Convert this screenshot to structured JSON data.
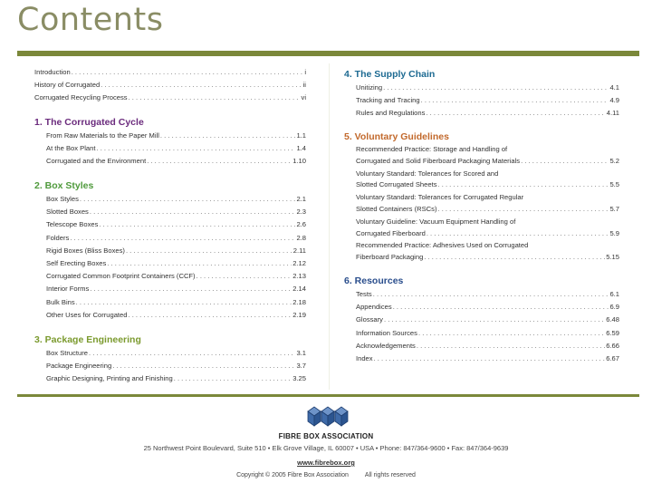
{
  "title": "Contents",
  "colors": {
    "bar": "#7b883a",
    "title": "#8a8d65"
  },
  "left_intro": [
    {
      "label": "Introduction",
      "page": "i"
    },
    {
      "label": "History of Corrugated",
      "page": "ii"
    },
    {
      "label": "Corrugated Recycling Process",
      "page": "vi"
    }
  ],
  "sections": [
    {
      "heading": "1. The Corrugated Cycle",
      "color": "#6b2b7d",
      "entries": [
        {
          "label": "From Raw Materials to the Paper Mill",
          "page": "1.1"
        },
        {
          "label": "At the Box Plant",
          "page": "1.4"
        },
        {
          "label": "Corrugated and the Environment",
          "page": "1.10"
        }
      ]
    },
    {
      "heading": "2. Box Styles",
      "color": "#4f9a3c",
      "entries": [
        {
          "label": "Box Styles",
          "page": "2.1"
        },
        {
          "label": "Slotted Boxes",
          "page": "2.3"
        },
        {
          "label": "Telescope Boxes",
          "page": "2.6"
        },
        {
          "label": "Folders",
          "page": "2.8"
        },
        {
          "label": "Rigid Boxes (Bliss Boxes)",
          "page": "2.11"
        },
        {
          "label": "Self Erecting Boxes",
          "page": "2.12"
        },
        {
          "label": "Corrugated Common Footprint Containers (CCF)",
          "page": "2.13"
        },
        {
          "label": "Interior Forms",
          "page": "2.14"
        },
        {
          "label": "Bulk Bins",
          "page": "2.18"
        },
        {
          "label": "Other Uses for Corrugated",
          "page": "2.19"
        }
      ]
    },
    {
      "heading": "3. Package Engineering",
      "color": "#7b9a2e",
      "entries": [
        {
          "label": "Box Structure",
          "page": "3.1"
        },
        {
          "label": "Package Engineering",
          "page": "3.7"
        },
        {
          "label": "Graphic Designing, Printing and Finishing",
          "page": "3.25"
        }
      ]
    },
    {
      "heading": "4. The Supply Chain",
      "color": "#1d6a92",
      "entries": [
        {
          "label": "Unitizing",
          "page": "4.1"
        },
        {
          "label": "Tracking and Tracing",
          "page": "4.9"
        },
        {
          "label": "Rules and Regulations",
          "page": "4.11"
        }
      ]
    },
    {
      "heading": "5. Voluntary Guidelines",
      "color": "#c2692c",
      "entries": [
        {
          "label": "Recommended Practice: Storage and Handling of",
          "label2": "Corrugated and Solid Fiberboard Packaging Materials",
          "page": "5.2"
        },
        {
          "label": "Voluntary Standard: Tolerances for Scored and",
          "label2": "Slotted Corrugated Sheets",
          "page": "5.5"
        },
        {
          "label": "Voluntary Standard: Tolerances for Corrugated Regular",
          "label2": "Slotted Containers (RSCs)",
          "page": "5.7"
        },
        {
          "label": "Voluntary Guideline: Vacuum Equipment Handling of",
          "label2": "Corrugated Fiberboard",
          "page": "5.9"
        },
        {
          "label": "Recommended Practice: Adhesives Used on Corrugated",
          "label2": "Fiberboard Packaging",
          "page": "5.15"
        }
      ]
    },
    {
      "heading": "6. Resources",
      "color": "#294d8c",
      "entries": [
        {
          "label": "Tests",
          "page": "6.1"
        },
        {
          "label": "Appendices",
          "page": "6.9"
        },
        {
          "label": "Glossary",
          "page": "6.48"
        },
        {
          "label": "Information Sources",
          "page": "6.59"
        },
        {
          "label": "Acknowledgements",
          "page": "6.66"
        },
        {
          "label": "Index",
          "page": "6.67"
        }
      ]
    }
  ],
  "footer": {
    "logo_text": "FIBRE BOX ASSOCIATION",
    "address": "25 Northwest Point Boulevard, Suite 510 • Elk Grove Village, IL 60007 • USA • Phone: 847/364-9600 • Fax: 847/364-9639",
    "website": "www.fibrebox.org",
    "copyright": "Copyright © 2005 Fibre Box Association",
    "rights": "All rights reserved"
  }
}
